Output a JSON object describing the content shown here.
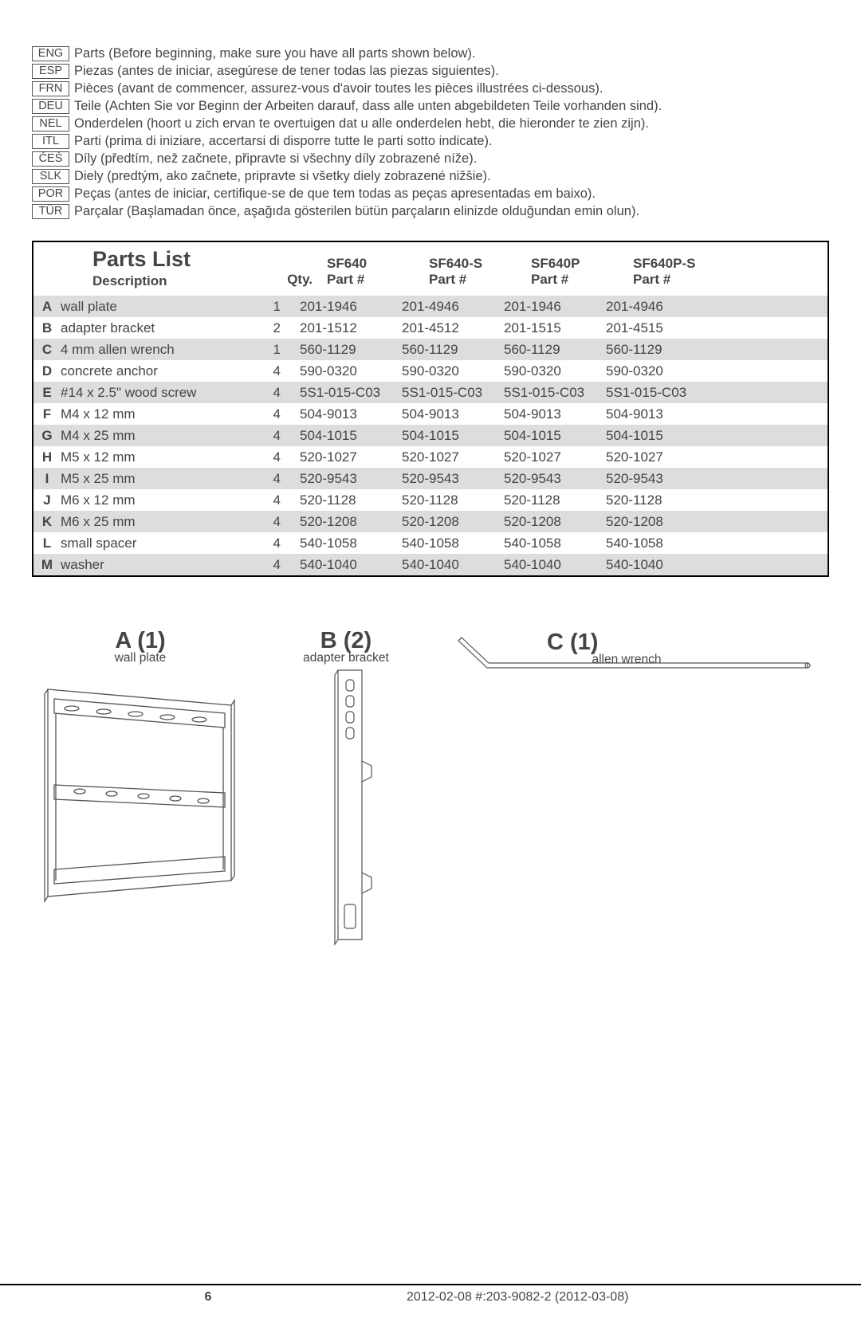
{
  "languages": [
    {
      "code": "ENG",
      "text": "Parts (Before beginning, make sure you have all parts shown below)."
    },
    {
      "code": "ESP",
      "text": "Piezas (antes de iniciar, asegúrese de tener todas las piezas siguientes)."
    },
    {
      "code": "FRN",
      "text": "Pièces (avant de commencer, assurez-vous d'avoir toutes les pièces illustrées ci-dessous)."
    },
    {
      "code": "DEU",
      "text": "Teile (Achten Sie vor Beginn der Arbeiten darauf, dass alle unten abgebildeten Teile vorhanden sind)."
    },
    {
      "code": "NEL",
      "text": "Onderdelen (hoort u zich ervan te overtuigen dat u alle onderdelen hebt, die hieronder te zien zijn)."
    },
    {
      "code": "ITL",
      "text": "Parti (prima di iniziare, accertarsi di disporre tutte le parti sotto indicate)."
    },
    {
      "code": "ČEŠ",
      "text": "Díly (předtím, než začnete, připravte si všechny díly zobrazené níže)."
    },
    {
      "code": "SLK",
      "text": "Diely (predtým, ako začnete, pripravte si všetky diely zobrazené nižšie)."
    },
    {
      "code": "POR",
      "text": "Peças (antes de iniciar, certifique-se de que tem todas as peças apresentadas em baixo)."
    },
    {
      "code": "TÜR",
      "text": "Parçalar (Başlamadan önce, aşağıda gösterilen bütün parçaların elinizde olduğundan emin olun)."
    }
  ],
  "table": {
    "title": "Parts List",
    "subtitle": "Description",
    "qty_header": "Qty.",
    "models": [
      "SF640",
      "SF640-S",
      "SF640P",
      "SF640P-S"
    ],
    "part_label": "Part #",
    "rows": [
      {
        "l": "A",
        "desc": "wall plate",
        "qty": "1",
        "p": [
          "201-1946",
          "201-4946",
          "201-1946",
          "201-4946"
        ]
      },
      {
        "l": "B",
        "desc": "adapter bracket",
        "qty": "2",
        "p": [
          "201-1512",
          "201-4512",
          "201-1515",
          "201-4515"
        ]
      },
      {
        "l": "C",
        "desc": "4 mm allen wrench",
        "qty": "1",
        "p": [
          "560-1129",
          "560-1129",
          "560-1129",
          "560-1129"
        ]
      },
      {
        "l": "D",
        "desc": "concrete anchor",
        "qty": "4",
        "p": [
          "590-0320",
          "590-0320",
          "590-0320",
          "590-0320"
        ]
      },
      {
        "l": "E",
        "desc": "#14 x 2.5\" wood screw",
        "qty": "4",
        "p": [
          "5S1-015-C03",
          "5S1-015-C03",
          "5S1-015-C03",
          "5S1-015-C03"
        ]
      },
      {
        "l": "F",
        "desc": "M4 x 12 mm",
        "qty": "4",
        "p": [
          "504-9013",
          "504-9013",
          "504-9013",
          "504-9013"
        ]
      },
      {
        "l": "G",
        "desc": "M4 x 25 mm",
        "qty": "4",
        "p": [
          "504-1015",
          "504-1015",
          "504-1015",
          "504-1015"
        ]
      },
      {
        "l": "H",
        "desc": "M5 x 12 mm",
        "qty": "4",
        "p": [
          "520-1027",
          "520-1027",
          "520-1027",
          "520-1027"
        ]
      },
      {
        "l": "I",
        "desc": "M5 x 25 mm",
        "qty": "4",
        "p": [
          "520-9543",
          "520-9543",
          "520-9543",
          "520-9543"
        ]
      },
      {
        "l": "J",
        "desc": "M6 x 12 mm",
        "qty": "4",
        "p": [
          "520-1128",
          "520-1128",
          "520-1128",
          "520-1128"
        ]
      },
      {
        "l": "K",
        "desc": "M6 x 25 mm",
        "qty": "4",
        "p": [
          "520-1208",
          "520-1208",
          "520-1208",
          "520-1208"
        ]
      },
      {
        "l": "L",
        "desc": "small spacer",
        "qty": "4",
        "p": [
          "540-1058",
          "540-1058",
          "540-1058",
          "540-1058"
        ]
      },
      {
        "l": "M",
        "desc": "washer",
        "qty": "4",
        "p": [
          "540-1040",
          "540-1040",
          "540-1040",
          "540-1040"
        ]
      }
    ]
  },
  "diagrams": {
    "a": {
      "title": "A (1)",
      "sub": "wall plate"
    },
    "b": {
      "title": "B (2)",
      "sub": "adapter bracket"
    },
    "c": {
      "title": "C (1)",
      "sub": "allen wrench"
    }
  },
  "footer": {
    "page": "6",
    "info": "2012-02-08   #:203-9082-2   (2012-03-08)"
  },
  "style": {
    "odd_row_bg": "#dddddd",
    "text_color": "#454545",
    "stroke_color": "#555555"
  }
}
